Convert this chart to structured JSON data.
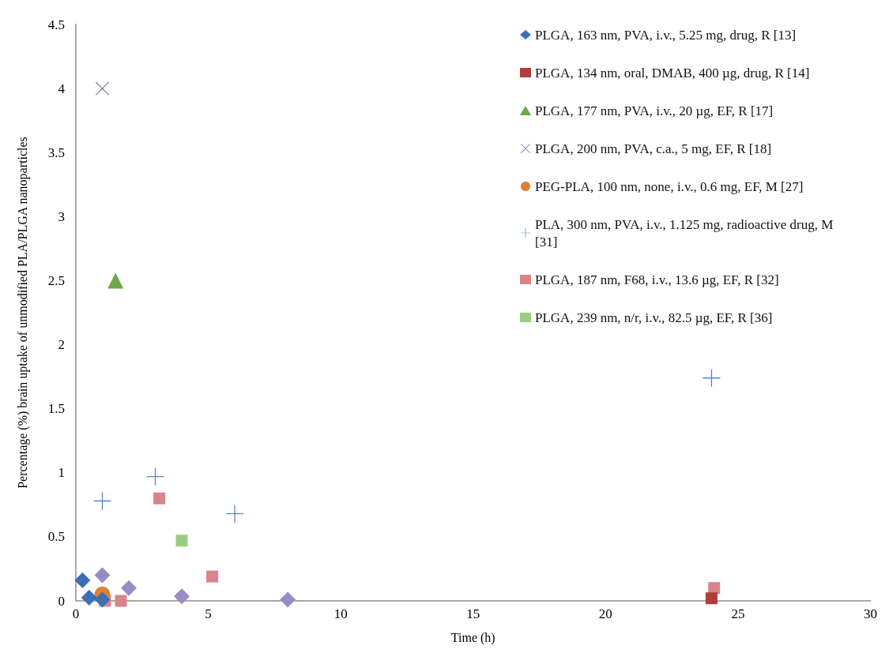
{
  "chart_data": {
    "type": "scatter",
    "xlabel": "Time (h)",
    "ylabel": "Percentage (%) brain uptake of unmodified PLA/PLGA nanoparticles",
    "xlim": [
      0,
      30
    ],
    "xticks": [
      0,
      5,
      10,
      15,
      20,
      25,
      30
    ],
    "ylim": [
      0,
      4.5
    ],
    "yticks": [
      0,
      0.5,
      1,
      1.5,
      2,
      2.5,
      3,
      3.5,
      4,
      4.5
    ],
    "grid": false,
    "legend": "top right",
    "series": [
      {
        "name": "PLGA, 163 nm, PVA, i.v., 5.25 mg, drug, R [13]",
        "color": "#3d6fb6",
        "marker": "diamond",
        "x": [
          0.25,
          0.5,
          1
        ],
        "values": [
          0.16,
          0.025,
          0.01
        ]
      },
      {
        "name": "PLGA, 134 nm, oral, DMAB, 400 µg, drug, R [14]",
        "color": "#b03c3c",
        "marker": "square",
        "x": [
          24
        ],
        "values": [
          0.02
        ]
      },
      {
        "name": "PLGA, 177 nm, PVA, i.v., 20 µg, EF, R [17]",
        "color": "#6ea84a",
        "marker": "triangle",
        "x": [
          1.5
        ],
        "values": [
          2.5
        ]
      },
      {
        "name": "PLGA, 200 nm, PVA, c.a., 5 mg, EF, R [18]",
        "color": "#6a55a0",
        "marker": "x",
        "x": [
          1
        ],
        "values": [
          4
        ]
      },
      {
        "name": "PEG-PLA, 100 nm, none, i.v., 0.6 mg, EF, M [27]",
        "color": "#e07f32",
        "marker": "circle",
        "x": [
          1
        ],
        "values": [
          0.05
        ]
      },
      {
        "name": "PLA, 300 nm, PVA, i.v., 1.125 mg, radioactive drug, M [31]",
        "color": "#5b85cc",
        "marker": "plus",
        "x": [
          1,
          3,
          6,
          24
        ],
        "values": [
          0.78,
          0.97,
          0.68,
          1.74
        ]
      },
      {
        "name": "PLGA, 187 nm, F68, i.v., 13.6 µg, EF, R [32]",
        "color": "#d9838a",
        "marker": "square",
        "x": [
          1.1,
          1.7,
          3.15,
          5.15,
          24.1
        ],
        "values": [
          0,
          0,
          0.8,
          0.19,
          0.1
        ]
      },
      {
        "name": "PLGA, 239 nm, n/r, i.v., 82.5 µg, EF, R [36]",
        "color": "#9ccc84",
        "marker": "square",
        "x": [
          4
        ],
        "values": [
          0.47
        ]
      },
      {
        "color": "#9b8bc4",
        "marker": "diamond",
        "x": [
          1,
          2,
          4,
          8
        ],
        "values": [
          0.2,
          0.1,
          0.035,
          0.01
        ]
      }
    ]
  }
}
